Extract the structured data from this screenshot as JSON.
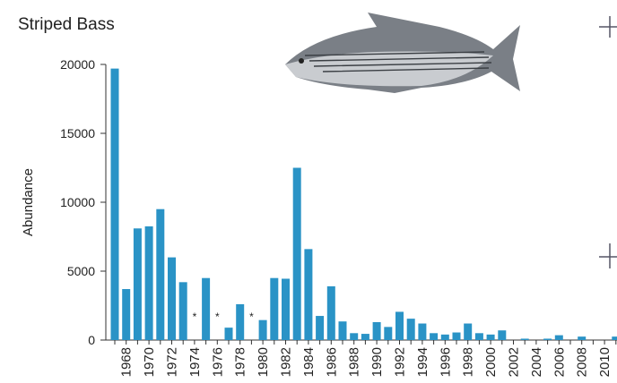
{
  "chart_data": {
    "type": "bar",
    "title": "Striped Bass",
    "y_label": "Abundance",
    "categories": [
      null,
      "1968",
      null,
      "1970",
      null,
      "1972",
      null,
      "1974",
      null,
      "1976",
      null,
      "1978",
      null,
      "1980",
      null,
      "1982",
      null,
      "1984",
      null,
      "1986",
      null,
      "1988",
      null,
      "1990",
      null,
      "1992",
      null,
      "1994",
      null,
      "1996",
      null,
      "1998",
      null,
      "2000",
      null,
      "2002",
      null,
      "2004",
      null,
      "2006",
      null,
      "2008",
      null,
      "2010",
      null
    ],
    "values": [
      19700,
      3700,
      8100,
      8250,
      9500,
      6000,
      4200,
      null,
      4500,
      null,
      900,
      2600,
      null,
      1450,
      4500,
      4450,
      12500,
      6600,
      1750,
      3900,
      1350,
      500,
      450,
      1300,
      950,
      2050,
      1550,
      1200,
      500,
      400,
      550,
      1200,
      500,
      400,
      700,
      0,
      100,
      0,
      100,
      350,
      0,
      250,
      0,
      0,
      250
    ],
    "missing_marker": "*",
    "color": "#2a93c6",
    "ylim": [
      0,
      20000
    ],
    "yticks": [
      0,
      5000,
      10000,
      15000,
      20000
    ]
  }
}
